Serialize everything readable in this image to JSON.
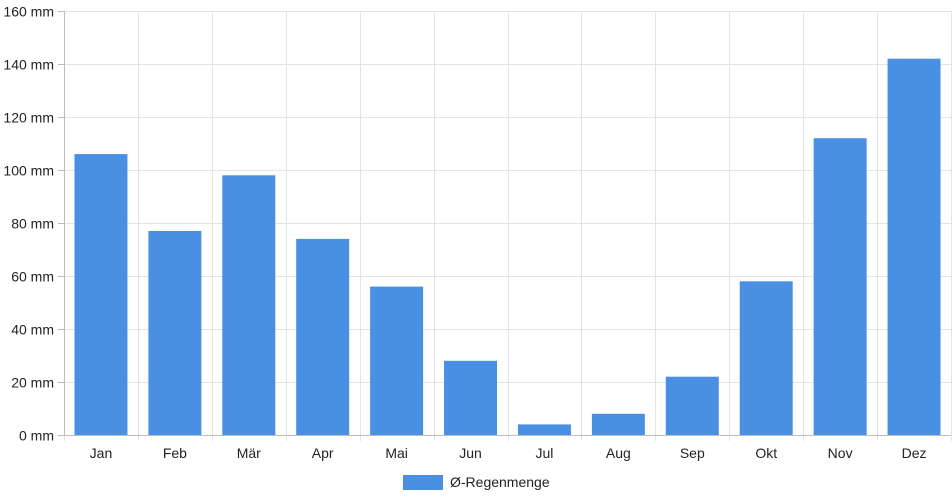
{
  "chart_data": {
    "type": "bar",
    "categories": [
      "Jan",
      "Feb",
      "Mär",
      "Apr",
      "Mai",
      "Jun",
      "Jul",
      "Aug",
      "Sep",
      "Okt",
      "Nov",
      "Dez"
    ],
    "series": [
      {
        "name": "Ø-Regenmenge",
        "values": [
          106,
          77,
          98,
          74,
          56,
          28,
          4,
          8,
          22,
          58,
          112,
          142
        ],
        "color": "#4a90e2"
      }
    ],
    "y_unit_suffix": " mm",
    "ylim": [
      0,
      160
    ],
    "yticks": [
      0,
      20,
      40,
      60,
      80,
      100,
      120,
      140,
      160
    ],
    "grid": true,
    "legend_position": "bottom-center",
    "gridline_color": "#e4e4e4",
    "axis_color": "#bdbdbd"
  }
}
